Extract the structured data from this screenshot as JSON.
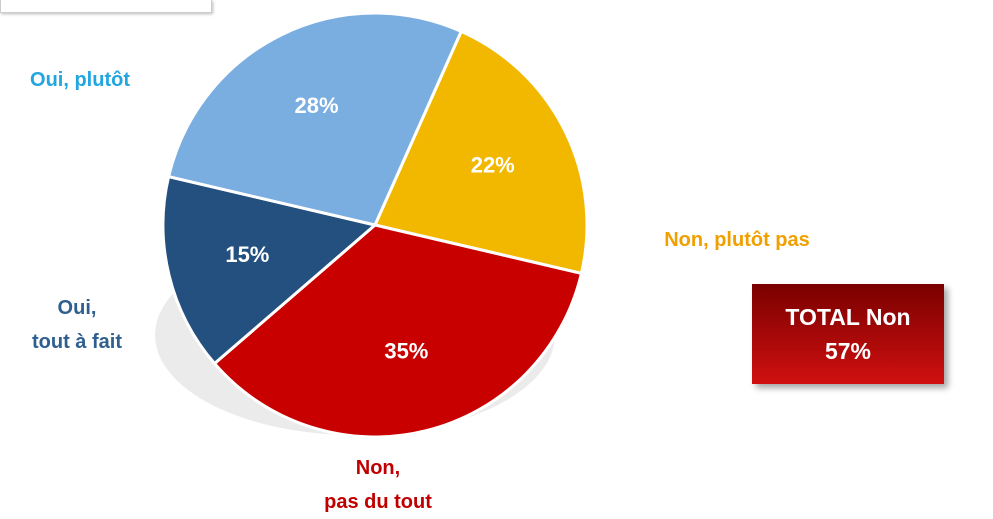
{
  "chart_data": {
    "type": "pie",
    "categories": [
      "Non, plutôt pas",
      "Non,\npas du tout",
      "Oui,\ntout à fait",
      "Oui, plutôt"
    ],
    "values": [
      22,
      35,
      15,
      28
    ],
    "value_labels": [
      "22%",
      "35%",
      "15%",
      "28%"
    ],
    "colors": [
      "#f2b800",
      "#c80000",
      "#24507f",
      "#7aaee0"
    ],
    "start_angle": 24,
    "annotation": {
      "label": "TOTAL Non",
      "value": 57,
      "value_label": "57%"
    }
  }
}
